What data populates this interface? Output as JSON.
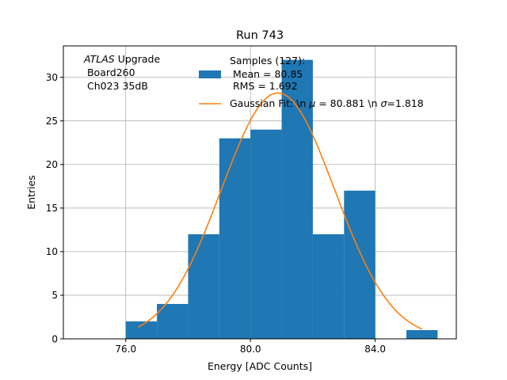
{
  "chart_data": {
    "type": "histogram",
    "title": "Run 743",
    "xlabel": "Energy [ADC Counts]",
    "ylabel": "Entries",
    "xlim": [
      74.0,
      86.6
    ],
    "ylim": [
      0,
      33.6
    ],
    "grid": true,
    "xticks": [
      76.0,
      80.0,
      84.0
    ],
    "xtick_labels": [
      "76.0",
      "80.0",
      "84.0"
    ],
    "yticks": [
      0,
      5,
      10,
      15,
      20,
      25,
      30
    ],
    "ytick_labels": [
      "0",
      "5",
      "10",
      "15",
      "20",
      "25",
      "30"
    ],
    "bins": [
      {
        "x0": 76.0,
        "x1": 77.0,
        "count": 2
      },
      {
        "x0": 77.0,
        "x1": 78.0,
        "count": 4
      },
      {
        "x0": 78.0,
        "x1": 79.0,
        "count": 12
      },
      {
        "x0": 79.0,
        "x1": 80.0,
        "count": 23
      },
      {
        "x0": 80.0,
        "x1": 81.0,
        "count": 24
      },
      {
        "x0": 81.0,
        "x1": 82.0,
        "count": 32
      },
      {
        "x0": 82.0,
        "x1": 83.0,
        "count": 12
      },
      {
        "x0": 83.0,
        "x1": 84.0,
        "count": 17
      },
      {
        "x0": 84.0,
        "x1": 85.0,
        "count": 0
      },
      {
        "x0": 85.0,
        "x1": 86.0,
        "count": 1
      }
    ],
    "bar_color": "#1f77b4",
    "fit": {
      "type": "gaussian",
      "mu": 80.881,
      "sigma": 1.818,
      "amplitude": 28.2,
      "x_range": [
        76.4,
        85.5
      ],
      "color": "#ff7f0e"
    },
    "annotation": {
      "italic": "ATLAS",
      "line1_rest": " Upgrade",
      "line2": " Board260",
      "line3": " Ch023 35dB"
    },
    "legend": {
      "location": "top-right",
      "samples_line1": "Samples (127):",
      "samples_line2": " Mean = 80.85",
      "samples_line3": " RMS = 1.692",
      "fit_text_a": "Gaussian Fit: \\n ",
      "fit_mu_symbol": "μ",
      "fit_text_b": " = 80.881 \\n ",
      "fit_sigma_symbol": "σ",
      "fit_text_c": "=1.818"
    }
  }
}
